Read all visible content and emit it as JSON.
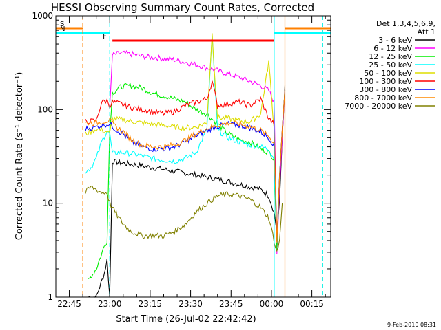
{
  "chart_data": {
    "type": "line",
    "title": "HESSI Observing Summary Count Rates, Corrected",
    "xlabel": "Start Time (26-Jul-02 22:42:42)",
    "ylabel": "Corrected Count Rate (s⁻¹ detector⁻¹)",
    "y_scale": "log",
    "ylim": [
      1,
      1000
    ],
    "xlim": [
      "22:40",
      "00:22"
    ],
    "y_ticks": [
      "1",
      "10",
      "100",
      "1000"
    ],
    "x_ticks": [
      "22:45",
      "23:00",
      "23:15",
      "23:30",
      "23:45",
      "00:00",
      "00:15"
    ],
    "legend_title": [
      "Det 1,3,4,5,6,9,",
      "Att 1"
    ],
    "legend_position": "right",
    "series": [
      {
        "name": "3 - 6 keV",
        "color": "#000000",
        "x": [
          "22:52",
          "22:55",
          "22:58",
          "22:59",
          "23:00",
          "23:01",
          "23:04",
          "23:08",
          "23:12",
          "23:16",
          "23:20",
          "23:24",
          "23:28",
          "23:32",
          "23:36",
          "23:40",
          "23:44",
          "23:48",
          "23:52",
          "23:56",
          "23:59",
          "00:01",
          "00:02",
          "00:03",
          "00:04",
          "00:05"
        ],
        "values": [
          1,
          1,
          1.8,
          2.5,
          1,
          28,
          27,
          26,
          25,
          24,
          23,
          22,
          21,
          20,
          19,
          18,
          17,
          16,
          15,
          14,
          12,
          8,
          5,
          10,
          50,
          180
        ]
      },
      {
        "name": "6 - 12 keV",
        "color": "#ff00ff",
        "x": [
          "23:00",
          "23:01",
          "23:04",
          "23:08",
          "23:12",
          "23:16",
          "23:20",
          "23:24",
          "23:28",
          "23:32",
          "23:36",
          "23:40",
          "23:44",
          "23:48",
          "23:52",
          "23:56",
          "23:59",
          "00:01",
          "00:02",
          "00:03",
          "00:04",
          "00:05"
        ],
        "values": [
          100,
          380,
          400,
          390,
          370,
          360,
          350,
          340,
          320,
          300,
          280,
          260,
          240,
          220,
          200,
          180,
          160,
          120,
          3,
          15,
          50,
          150
        ]
      },
      {
        "name": "12 - 25 keV",
        "color": "#00ee00",
        "x": [
          "22:52",
          "22:55",
          "22:58",
          "22:59",
          "23:00",
          "23:01",
          "23:04",
          "23:08",
          "23:12",
          "23:16",
          "23:20",
          "23:24",
          "23:28",
          "23:32",
          "23:36",
          "23:40",
          "23:44",
          "23:48",
          "23:52",
          "23:56",
          "23:59",
          "00:01",
          "00:02",
          "00:03",
          "00:04",
          "00:05"
        ],
        "values": [
          1.5,
          2,
          3.5,
          4,
          60,
          150,
          175,
          180,
          170,
          150,
          140,
          130,
          120,
          100,
          90,
          70,
          55,
          48,
          45,
          38,
          35,
          30,
          3,
          20,
          60,
          160
        ]
      },
      {
        "name": "25 - 50 keV",
        "color": "#00ffff",
        "x": [
          "22:51",
          "22:53",
          "22:55",
          "22:57",
          "22:59",
          "23:00",
          "23:01",
          "23:04",
          "23:08",
          "23:12",
          "23:16",
          "23:20",
          "23:24",
          "23:28",
          "23:32",
          "23:36",
          "23:38",
          "23:40",
          "23:44",
          "23:48",
          "23:52",
          "23:56",
          "23:59",
          "00:01",
          "00:02",
          "00:03",
          "00:04",
          "00:05"
        ],
        "values": [
          22,
          24,
          30,
          45,
          60,
          55,
          34,
          35,
          34,
          32,
          30,
          29,
          28,
          30,
          35,
          60,
          600,
          60,
          50,
          45,
          42,
          40,
          38,
          30,
          4,
          20,
          60,
          160
        ]
      },
      {
        "name": "50 - 100 keV",
        "color": "#dddd00",
        "x": [
          "22:51",
          "22:53",
          "22:55",
          "22:57",
          "22:59",
          "23:00",
          "23:01",
          "23:04",
          "23:08",
          "23:12",
          "23:16",
          "23:20",
          "23:24",
          "23:28",
          "23:32",
          "23:36",
          "23:38",
          "23:40",
          "23:44",
          "23:48",
          "23:52",
          "23:56",
          "23:59",
          "00:01",
          "00:02",
          "00:03",
          "00:04",
          "00:05"
        ],
        "values": [
          55,
          58,
          62,
          60,
          58,
          55,
          80,
          78,
          75,
          72,
          70,
          68,
          65,
          64,
          65,
          72,
          640,
          82,
          80,
          76,
          74,
          90,
          330,
          60,
          4,
          20,
          60,
          160
        ]
      },
      {
        "name": "100 - 300 keV",
        "color": "#ff0000",
        "x": [
          "22:51",
          "22:53",
          "22:55",
          "22:57",
          "22:59",
          "23:00",
          "23:01",
          "23:04",
          "23:08",
          "23:12",
          "23:16",
          "23:20",
          "23:24",
          "23:28",
          "23:32",
          "23:36",
          "23:38",
          "23:40",
          "23:44",
          "23:48",
          "23:52",
          "23:56",
          "23:59",
          "00:01",
          "00:02",
          "00:03",
          "00:04",
          "00:05"
        ],
        "values": [
          75,
          75,
          76,
          120,
          125,
          110,
          120,
          115,
          105,
          100,
          95,
          90,
          95,
          110,
          120,
          130,
          200,
          110,
          115,
          120,
          110,
          130,
          80,
          70,
          4,
          20,
          60,
          160
        ]
      },
      {
        "name": "300 - 800 keV",
        "color": "#0000ff",
        "x": [
          "22:51",
          "22:53",
          "22:55",
          "22:57",
          "22:59",
          "23:00",
          "23:02",
          "23:05",
          "23:08",
          "23:12",
          "23:16",
          "23:20",
          "23:24",
          "23:28",
          "23:32",
          "23:36",
          "23:40",
          "23:44",
          "23:48",
          "23:52",
          "23:56",
          "23:59",
          "00:01",
          "00:02",
          "00:03",
          "00:04",
          "00:05"
        ],
        "values": [
          62,
          64,
          65,
          68,
          70,
          70,
          62,
          55,
          45,
          40,
          38,
          38,
          40,
          45,
          52,
          60,
          66,
          70,
          68,
          64,
          58,
          50,
          42,
          4,
          20,
          60,
          160
        ]
      },
      {
        "name": "800 - 7000 keV",
        "color": "#ff8800",
        "x": [
          "22:51",
          "22:53",
          "22:55",
          "22:57",
          "22:59",
          "23:00",
          "23:02",
          "23:05",
          "23:08",
          "23:12",
          "23:16",
          "23:20",
          "23:24",
          "23:28",
          "23:32",
          "23:36",
          "23:40",
          "23:44",
          "23:48",
          "23:52",
          "23:56",
          "23:59",
          "00:01",
          "00:02",
          "00:03",
          "00:04",
          "00:05"
        ],
        "values": [
          72,
          72,
          72,
          74,
          76,
          76,
          66,
          58,
          48,
          42,
          40,
          40,
          42,
          47,
          55,
          63,
          68,
          72,
          70,
          66,
          60,
          52,
          44,
          4,
          20,
          60,
          160
        ]
      },
      {
        "name": "7000 - 20000 keV",
        "color": "#808000",
        "x": [
          "22:51",
          "22:53",
          "22:55",
          "22:57",
          "22:59",
          "23:00",
          "23:02",
          "23:05",
          "23:08",
          "23:12",
          "23:16",
          "23:20",
          "23:24",
          "23:28",
          "23:32",
          "23:36",
          "23:40",
          "23:44",
          "23:48",
          "23:52",
          "23:56",
          "23:59",
          "00:01",
          "00:02",
          "00:03",
          "00:04"
        ],
        "values": [
          13,
          15,
          14,
          13,
          13,
          10,
          8,
          6,
          5,
          4.5,
          4.5,
          4.5,
          5,
          6,
          8,
          10,
          12,
          12.5,
          12,
          11,
          9,
          7,
          4,
          3,
          4,
          10
        ]
      }
    ],
    "status_bars": [
      {
        "label": "S",
        "color": "#ff8000",
        "intervals": [
          [
            "22:40",
            "22:50"
          ],
          [
            "00:05",
            "00:22"
          ]
        ]
      },
      {
        "label": "N",
        "color": "#00ffff",
        "intervals": [
          [
            "22:40",
            "23:00"
          ],
          [
            "00:01",
            "00:22"
          ]
        ]
      },
      {
        "label": "F",
        "color": "#ff0000",
        "intervals": [
          [
            "23:01",
            "00:01"
          ]
        ]
      }
    ],
    "vertical_markers": [
      {
        "time": "22:50",
        "color": "#ff8000",
        "style": "dashed"
      },
      {
        "time": "23:00",
        "color": "#00ffff",
        "style": "dashed"
      },
      {
        "time": "00:01",
        "color": "#00ffff",
        "style": "solid"
      },
      {
        "time": "00:05",
        "color": "#ff8000",
        "style": "solid"
      },
      {
        "time": "00:19",
        "color": "#ff8000",
        "style": "dashed"
      },
      {
        "time": "00:19",
        "color": "#00ffff",
        "style": "dashed"
      }
    ],
    "timestamp": "9-Feb-2010 08:31",
    "grid": false
  }
}
